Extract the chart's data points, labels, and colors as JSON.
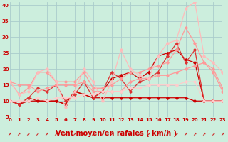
{
  "xlabel": "Vent moyen/en rafales ( km/h )",
  "bg_color": "#cceedd",
  "grid_color": "#aacccc",
  "x_ticks": [
    0,
    1,
    2,
    3,
    4,
    5,
    6,
    7,
    8,
    9,
    10,
    11,
    12,
    13,
    14,
    15,
    16,
    17,
    18,
    19,
    20,
    21,
    22,
    23
  ],
  "y_ticks": [
    5,
    10,
    15,
    20,
    25,
    30,
    35,
    40
  ],
  "xlim": [
    0,
    23
  ],
  "ylim": [
    5,
    41
  ],
  "series": [
    {
      "x": [
        0,
        1,
        2,
        3,
        4,
        5,
        6,
        7,
        8,
        9,
        10,
        11,
        12,
        13,
        14,
        15,
        16,
        17,
        18,
        19,
        20,
        21,
        22,
        23
      ],
      "y": [
        10,
        9,
        10,
        10,
        10,
        10,
        9,
        13,
        12,
        11,
        11,
        11,
        11,
        11,
        11,
        11,
        11,
        11,
        11,
        11,
        10,
        10,
        10,
        10
      ],
      "color": "#cc0000",
      "lw": 0.9,
      "marker": "D",
      "ms": 1.8
    },
    {
      "x": [
        0,
        1,
        2,
        3,
        4,
        5,
        6,
        7,
        8,
        9,
        10,
        11,
        12,
        13,
        14,
        15,
        16,
        17,
        18,
        19,
        20,
        21,
        22,
        23
      ],
      "y": [
        10,
        9,
        11,
        10,
        10,
        10,
        9,
        13,
        12,
        11,
        13,
        17,
        18,
        19,
        17,
        19,
        24,
        25,
        26,
        23,
        22,
        10,
        10,
        10
      ],
      "color": "#cc0000",
      "lw": 0.9,
      "marker": "D",
      "ms": 1.8
    },
    {
      "x": [
        0,
        1,
        2,
        3,
        4,
        5,
        6,
        7,
        8,
        9,
        10,
        11,
        12,
        13,
        14,
        15,
        16,
        17,
        18,
        19,
        20,
        21,
        22,
        23
      ],
      "y": [
        10,
        9,
        11,
        14,
        13,
        15,
        10,
        12,
        16,
        11,
        13,
        19,
        17,
        13,
        16,
        17,
        19,
        24,
        28,
        22,
        26,
        10,
        10,
        10
      ],
      "color": "#dd3333",
      "lw": 0.9,
      "marker": "D",
      "ms": 1.8
    },
    {
      "x": [
        0,
        1,
        2,
        3,
        4,
        5,
        6,
        7,
        8,
        9,
        10,
        11,
        12,
        13,
        14,
        15,
        16,
        17,
        18,
        19,
        20,
        21,
        22,
        23
      ],
      "y": [
        16,
        15,
        15,
        13,
        14,
        15,
        15,
        15,
        16,
        13,
        13,
        13,
        13,
        16,
        17,
        17,
        18,
        18,
        19,
        20,
        21,
        22,
        20,
        14
      ],
      "color": "#ff9999",
      "lw": 0.9,
      "marker": "D",
      "ms": 1.8
    },
    {
      "x": [
        0,
        1,
        2,
        3,
        4,
        5,
        6,
        7,
        8,
        9,
        10,
        11,
        12,
        13,
        14,
        15,
        16,
        17,
        18,
        19,
        20,
        21,
        22,
        23
      ],
      "y": [
        16,
        12,
        14,
        19,
        19,
        16,
        16,
        16,
        19,
        14,
        14,
        15,
        17,
        19,
        19,
        20,
        21,
        22,
        26,
        33,
        28,
        22,
        19,
        13
      ],
      "color": "#ff9999",
      "lw": 0.9,
      "marker": "D",
      "ms": 1.8
    },
    {
      "x": [
        0,
        1,
        2,
        3,
        4,
        5,
        6,
        7,
        8,
        9,
        10,
        11,
        12,
        13,
        14,
        15,
        16,
        17,
        18,
        19,
        20,
        21,
        22,
        23
      ],
      "y": [
        16,
        12,
        13,
        19,
        20,
        16,
        8,
        13,
        20,
        16,
        10,
        16,
        26,
        20,
        18,
        17,
        24,
        28,
        29,
        39,
        41,
        24,
        22,
        19
      ],
      "color": "#ffbbbb",
      "lw": 0.9,
      "marker": "D",
      "ms": 1.8
    },
    {
      "x": [
        0,
        1,
        2,
        3,
        4,
        5,
        6,
        7,
        8,
        9,
        10,
        11,
        12,
        13,
        14,
        15,
        16,
        17,
        18,
        19,
        20,
        21,
        22,
        23
      ],
      "y": [
        10,
        10,
        10,
        11,
        10,
        11,
        11,
        11,
        12,
        12,
        13,
        13,
        13,
        14,
        14,
        15,
        15,
        15,
        15,
        16,
        16,
        10,
        10,
        10
      ],
      "color": "#ffcccc",
      "lw": 0.9,
      "marker": "D",
      "ms": 1.8
    }
  ],
  "tick_label_color": "#cc0000",
  "axis_label_color": "#cc0000",
  "tick_label_size": 5.0,
  "xlabel_size": 7.0
}
